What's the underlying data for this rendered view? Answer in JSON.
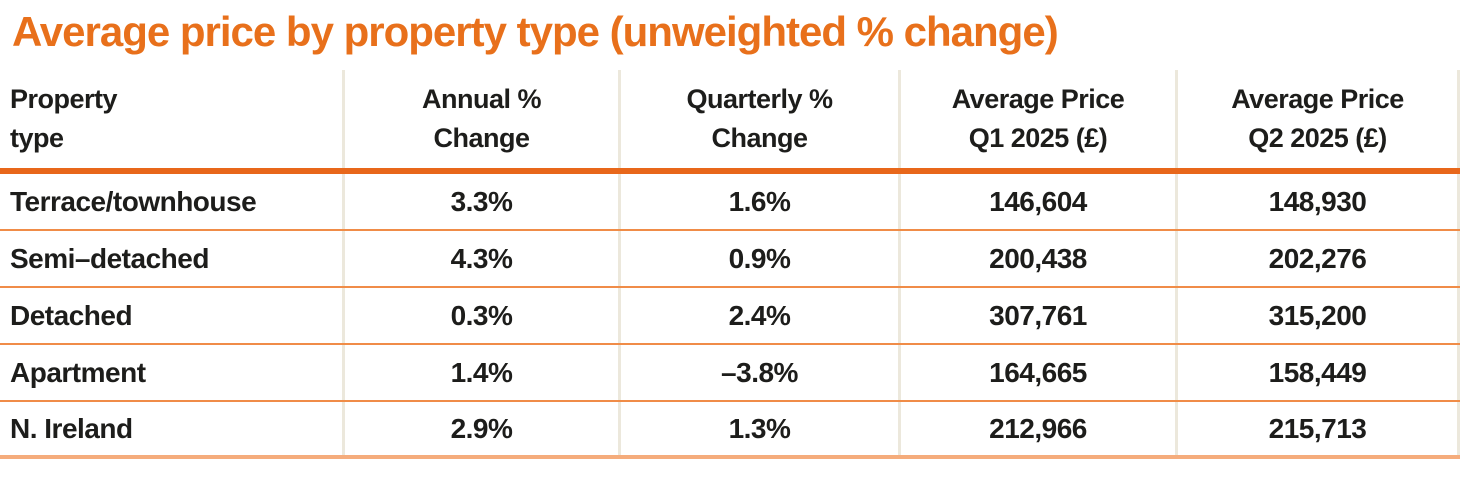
{
  "title": "Average price by property type (unweighted % change)",
  "colors": {
    "title_orange": "#e8701b",
    "header_rule_orange": "#e8671a",
    "row_divider_orange": "#f08c48",
    "bottom_rule_salmon": "#f5ac7c",
    "column_divider_beige": "#ece8dc",
    "text": "#1d1d1b"
  },
  "chart_data": {
    "type": "table",
    "title": "Average price by property type (unweighted % change)",
    "columns": [
      "Property\ntype",
      "Annual %\nChange",
      "Quarterly %\nChange",
      "Average Price\nQ1 2025 (£)",
      "Average Price\nQ2 2025 (£)"
    ],
    "rows": [
      [
        "Terrace/townhouse",
        "3.3%",
        "1.6%",
        "146,604",
        "148,930"
      ],
      [
        "Semi–detached",
        "4.3%",
        "0.9%",
        "200,438",
        "202,276"
      ],
      [
        "Detached",
        "0.3%",
        "2.4%",
        "307,761",
        "315,200"
      ],
      [
        "Apartment",
        "1.4%",
        "–3.8%",
        "164,665",
        "158,449"
      ],
      [
        "N. Ireland",
        "2.9%",
        "1.3%",
        "212,966",
        "215,713"
      ]
    ]
  }
}
